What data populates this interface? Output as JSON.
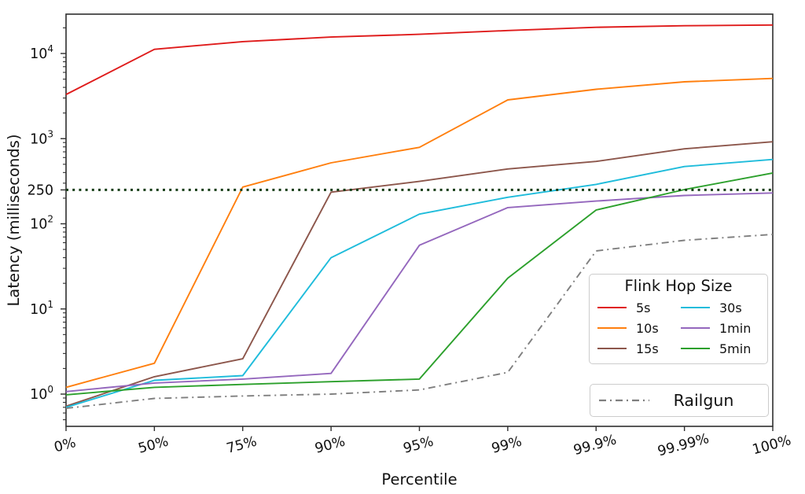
{
  "figure": {
    "x_axis_label": "Percentile",
    "y_axis_label": "Latency (milliseconds)"
  },
  "legend": {
    "title": "Flink Hop Size",
    "railgun_label": "Railgun"
  },
  "colors": {
    "spine": "#2e2e2e",
    "tick_text": "#111111",
    "reference_dotted": "#143c14",
    "railgun_gray": "#7f7f7f"
  },
  "chart_data": {
    "type": "line",
    "x": [
      "0%",
      "50%",
      "75%",
      "90%",
      "95%",
      "99%",
      "99.9%",
      "99.99%",
      "100%"
    ],
    "xlabel": "Percentile",
    "ylabel": "Latency (milliseconds)",
    "y_scale": "log",
    "ylim": [
      0.43,
      29000
    ],
    "grid": false,
    "legend_title": "Flink Hop Size",
    "legend_position": "lower right (two boxes)",
    "y_ticks": [
      {
        "value": 1,
        "label": "10",
        "sup": "0"
      },
      {
        "value": 10,
        "label": "10",
        "sup": "1"
      },
      {
        "value": 100,
        "label": "10",
        "sup": "2"
      },
      {
        "value": 250,
        "label": "250"
      },
      {
        "value": 1000,
        "label": "10",
        "sup": "3"
      },
      {
        "value": 10000,
        "label": "10",
        "sup": "4"
      }
    ],
    "reference_line": {
      "value": 250,
      "style": "dotted",
      "color": "#143c14"
    },
    "series": [
      {
        "name": "5s",
        "color": "#df1b1b",
        "dash": "solid",
        "values": [
          3300,
          11200,
          13800,
          15600,
          16800,
          18600,
          20300,
          21200,
          21600
        ]
      },
      {
        "name": "10s",
        "color": "#ff7f0e",
        "dash": "solid",
        "values": [
          1.2,
          2.3,
          270,
          520,
          790,
          2850,
          3800,
          4650,
          5100
        ]
      },
      {
        "name": "15s",
        "color": "#8c564b",
        "dash": "solid",
        "values": [
          0.72,
          1.6,
          2.6,
          235,
          315,
          440,
          540,
          760,
          920
        ]
      },
      {
        "name": "30s",
        "color": "#1fbcdb",
        "dash": "solid",
        "values": [
          0.7,
          1.45,
          1.65,
          40,
          130,
          205,
          290,
          470,
          570
        ]
      },
      {
        "name": "1min",
        "color": "#9467bd",
        "dash": "solid",
        "values": [
          1.07,
          1.35,
          1.5,
          1.75,
          56,
          155,
          185,
          215,
          230
        ]
      },
      {
        "name": "5min",
        "color": "#2ca02c",
        "dash": "solid",
        "values": [
          0.98,
          1.2,
          1.3,
          1.4,
          1.5,
          23,
          145,
          252,
          395
        ]
      },
      {
        "name": "Railgun",
        "color": "#7f7f7f",
        "dash": "dashdot",
        "values": [
          0.68,
          0.89,
          0.95,
          1.0,
          1.12,
          1.8,
          48,
          64,
          75
        ]
      }
    ]
  }
}
